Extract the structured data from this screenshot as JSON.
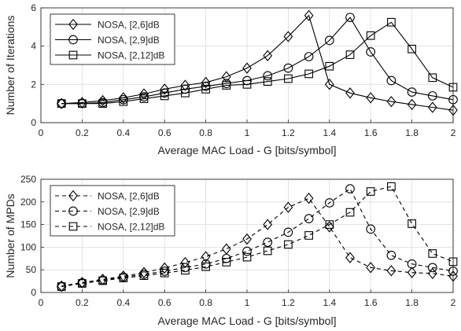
{
  "chart_data": [
    {
      "type": "line",
      "title": "",
      "xlabel": "Average MAC Load - G [bits/symbol]",
      "ylabel": "Number of Iterations",
      "xlim": [
        0,
        2
      ],
      "ylim": [
        0,
        6
      ],
      "xticks": [
        "0",
        "0.2",
        "0.4",
        "0.6",
        "0.8",
        "1",
        "1.2",
        "1.4",
        "1.6",
        "1.8",
        "2"
      ],
      "yticks": [
        "0",
        "2",
        "4",
        "6"
      ],
      "grid": true,
      "line_style": "solid",
      "legend_position": "top-left",
      "x": [
        0.1,
        0.2,
        0.3,
        0.4,
        0.5,
        0.6,
        0.7,
        0.8,
        0.9,
        1.0,
        1.1,
        1.2,
        1.3,
        1.4,
        1.5,
        1.6,
        1.7,
        1.8,
        1.9,
        2.0
      ],
      "series": [
        {
          "name": "NOSA, [2,6]dB",
          "marker": "diamond",
          "values": [
            1.0,
            1.05,
            1.15,
            1.3,
            1.5,
            1.75,
            1.95,
            2.1,
            2.4,
            2.85,
            3.5,
            4.5,
            5.6,
            2.0,
            1.55,
            1.3,
            1.1,
            0.95,
            0.8,
            0.65
          ]
        },
        {
          "name": "NOSA, [2,9]dB",
          "marker": "circle",
          "values": [
            1.0,
            1.0,
            1.05,
            1.2,
            1.35,
            1.55,
            1.75,
            1.9,
            2.05,
            2.2,
            2.45,
            2.85,
            3.45,
            4.3,
            5.5,
            3.7,
            2.2,
            1.6,
            1.4,
            1.2
          ]
        },
        {
          "name": "NOSA, [2,12]dB",
          "marker": "square",
          "values": [
            1.0,
            1.0,
            1.0,
            1.1,
            1.25,
            1.4,
            1.55,
            1.75,
            1.95,
            2.0,
            2.15,
            2.3,
            2.55,
            2.95,
            3.55,
            4.55,
            5.25,
            3.85,
            2.35,
            1.85
          ]
        }
      ]
    },
    {
      "type": "line",
      "title": "",
      "xlabel": "Average MAC Load - G [bits/symbol]",
      "ylabel": "Number of MPDs",
      "xlim": [
        0,
        2
      ],
      "ylim": [
        0,
        250
      ],
      "xticks": [
        "0",
        "0.2",
        "0.4",
        "0.6",
        "0.8",
        "1",
        "1.2",
        "1.4",
        "1.6",
        "1.8",
        "2"
      ],
      "yticks": [
        "0",
        "50",
        "100",
        "150",
        "200",
        "250"
      ],
      "grid": true,
      "line_style": "dashed",
      "legend_position": "top-left",
      "x": [
        0.1,
        0.2,
        0.3,
        0.4,
        0.5,
        0.6,
        0.7,
        0.8,
        0.9,
        1.0,
        1.1,
        1.2,
        1.3,
        1.4,
        1.5,
        1.6,
        1.7,
        1.8,
        1.9,
        2.0
      ],
      "series": [
        {
          "name": "NOSA, [2,6]dB",
          "marker": "diamond",
          "values": [
            14,
            22,
            29,
            36,
            44,
            54,
            66,
            79,
            96,
            118,
            150,
            188,
            208,
            145,
            77,
            55,
            48,
            44,
            42,
            36
          ]
        },
        {
          "name": "NOSA, [2,9]dB",
          "marker": "circle",
          "values": [
            13,
            21,
            27,
            34,
            40,
            47,
            55,
            63,
            75,
            91,
            111,
            133,
            163,
            198,
            229,
            140,
            82,
            63,
            55,
            47
          ]
        },
        {
          "name": "NOSA, [2,12]dB",
          "marker": "square",
          "values": [
            13,
            20,
            26,
            32,
            37,
            43,
            49,
            57,
            67,
            78,
            92,
            106,
            126,
            150,
            177,
            223,
            234,
            152,
            86,
            68
          ]
        }
      ]
    }
  ]
}
